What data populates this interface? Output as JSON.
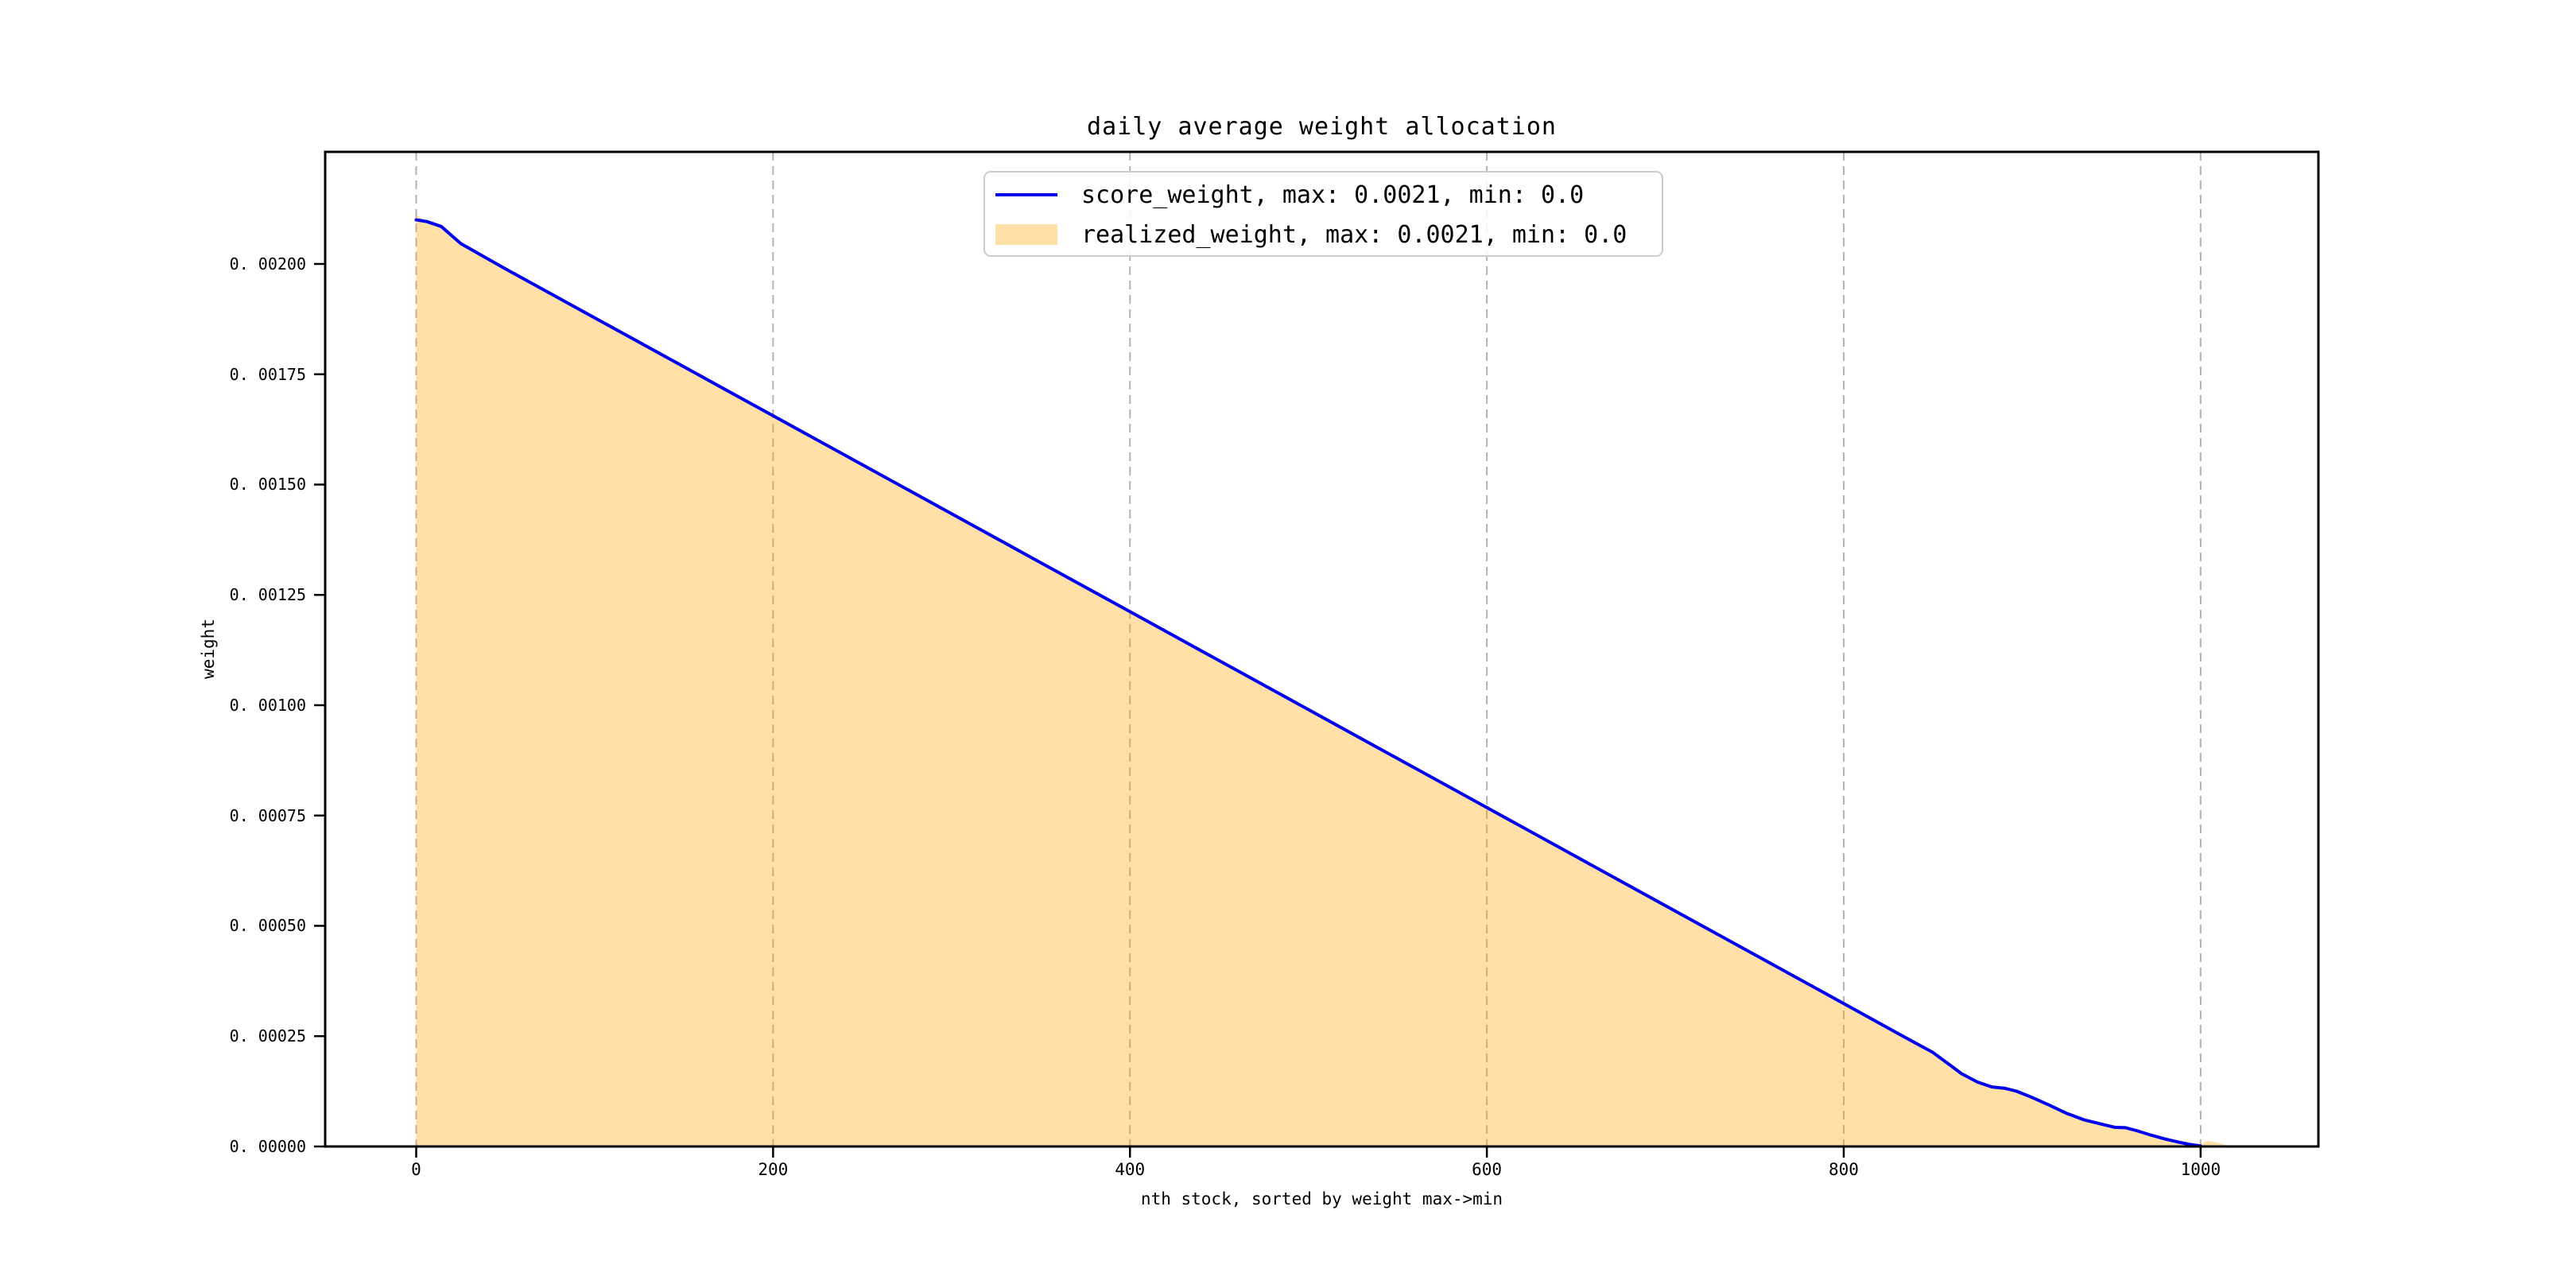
{
  "chart_data": {
    "type": "area",
    "title": "daily average weight allocation",
    "xlabel": "nth stock, sorted by weight max->min",
    "ylabel": "weight",
    "xlim": [
      -51,
      1066
    ],
    "ylim": [
      0,
      0.002254
    ],
    "x_ticks": [
      0,
      200,
      400,
      600,
      800,
      1000
    ],
    "x_tick_labels": [
      "0",
      "200",
      "400",
      "600",
      "800",
      "1000"
    ],
    "y_ticks": [
      0.0,
      0.00025,
      0.0005,
      0.00075,
      0.001,
      0.00125,
      0.0015,
      0.00175,
      0.002
    ],
    "y_tick_labels": [
      "0. 00000",
      "0. 00025",
      "0. 00050",
      "0. 00075",
      "0. 00100",
      "0. 00125",
      "0. 00150",
      "0. 00175",
      "0. 00200"
    ],
    "grid": "vertical-dashed",
    "grid_color": "#b3b3b3",
    "axis_color": "#000000",
    "legend_position": "upper center",
    "series": [
      {
        "name": "score_weight",
        "legend_label": "score_weight, max: 0.0021, min: 0.0",
        "type": "line",
        "color": "#0101f0",
        "max": 0.0021,
        "min": 0.0,
        "points": [
          [
            0,
            0.0021
          ],
          [
            6,
            0.002096
          ],
          [
            14,
            0.002085
          ],
          [
            25,
            0.002046
          ],
          [
            50,
            0.001989
          ],
          [
            100,
            0.001878
          ],
          [
            150,
            0.001767
          ],
          [
            200,
            0.001656
          ],
          [
            250,
            0.001545
          ],
          [
            300,
            0.001434
          ],
          [
            350,
            0.001323
          ],
          [
            400,
            0.001212
          ],
          [
            450,
            0.001101
          ],
          [
            500,
            0.00099
          ],
          [
            550,
            0.000879
          ],
          [
            600,
            0.000768
          ],
          [
            650,
            0.000657
          ],
          [
            700,
            0.000546
          ],
          [
            750,
            0.000435
          ],
          [
            800,
            0.000324
          ],
          [
            830,
            0.000257
          ],
          [
            850,
            0.000213
          ],
          [
            860,
            0.000183
          ],
          [
            866,
            0.000165
          ],
          [
            875,
            0.000146
          ],
          [
            883,
            0.000135
          ],
          [
            890,
            0.000132
          ],
          [
            897,
            0.000125
          ],
          [
            905,
            0.000112
          ],
          [
            915,
            9.4e-05
          ],
          [
            925,
            7.5e-05
          ],
          [
            935,
            6e-05
          ],
          [
            945,
            5e-05
          ],
          [
            952,
            4.35e-05
          ],
          [
            958,
            4.25e-05
          ],
          [
            964,
            3.6e-05
          ],
          [
            972,
            2.6e-05
          ],
          [
            980,
            1.7e-05
          ],
          [
            988,
            9.5e-06
          ],
          [
            994,
            4.5e-06
          ],
          [
            1000,
            1e-06
          ]
        ]
      },
      {
        "name": "realized_weight",
        "legend_label": "realized_weight, max: 0.0021, min: 0.0",
        "type": "area",
        "color": "#ffa500",
        "fill_opacity": 0.35,
        "max": 0.0021,
        "min": 0.0,
        "points": [
          [
            0,
            0.002112
          ],
          [
            3,
            0.002103
          ],
          [
            6,
            0.002096
          ],
          [
            14,
            0.002085
          ],
          [
            25,
            0.002046
          ],
          [
            50,
            0.001989
          ],
          [
            100,
            0.001878
          ],
          [
            150,
            0.001767
          ],
          [
            200,
            0.001656
          ],
          [
            250,
            0.001545
          ],
          [
            300,
            0.001434
          ],
          [
            350,
            0.001323
          ],
          [
            400,
            0.001212
          ],
          [
            450,
            0.001101
          ],
          [
            500,
            0.00099
          ],
          [
            550,
            0.000879
          ],
          [
            600,
            0.000768
          ],
          [
            650,
            0.000657
          ],
          [
            700,
            0.000546
          ],
          [
            750,
            0.000435
          ],
          [
            800,
            0.000324
          ],
          [
            830,
            0.000257
          ],
          [
            850,
            0.000213
          ],
          [
            860,
            0.000183
          ],
          [
            866,
            0.000165
          ],
          [
            875,
            0.000146
          ],
          [
            883,
            0.000135
          ],
          [
            890,
            0.000132
          ],
          [
            897,
            0.000125
          ],
          [
            905,
            0.000112
          ],
          [
            915,
            9.4e-05
          ],
          [
            925,
            7.5e-05
          ],
          [
            935,
            6e-05
          ],
          [
            945,
            5e-05
          ],
          [
            952,
            4.35e-05
          ],
          [
            958,
            4.25e-05
          ],
          [
            964,
            3.6e-05
          ],
          [
            972,
            2.6e-05
          ],
          [
            980,
            1.7e-05
          ],
          [
            988,
            9.5e-06
          ],
          [
            994,
            4.5e-06
          ],
          [
            1000,
            1e-06
          ],
          [
            1001,
            8e-06
          ],
          [
            1004,
            1.25e-05
          ],
          [
            1008,
            1.05e-05
          ],
          [
            1012,
            6e-06
          ],
          [
            1016,
            1e-06
          ],
          [
            1018,
            0.0
          ]
        ]
      }
    ]
  }
}
